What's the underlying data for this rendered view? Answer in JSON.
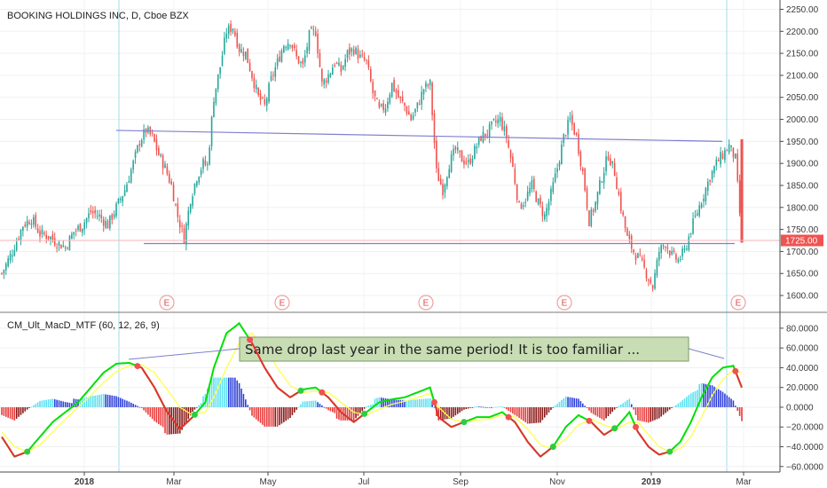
{
  "chart_data": [
    {
      "type": "candlestick",
      "title": "BOOKING HOLDINGS INC, D, Cboe BZX",
      "ylim": [
        1590,
        2255
      ],
      "yticks": [
        "1600.00",
        "1650.00",
        "1700.00",
        "1750.00",
        "1800.00",
        "1850.00",
        "1900.00",
        "1950.00",
        "2000.00",
        "2050.00",
        "2100.00",
        "2150.00",
        "2200.00",
        "2250.00"
      ],
      "xticks": [
        {
          "label": "2018",
          "bold": true
        },
        {
          "label": "Mar",
          "bold": false
        },
        {
          "label": "May",
          "bold": false
        },
        {
          "label": "Jul",
          "bold": false
        },
        {
          "label": "Sep",
          "bold": false
        },
        {
          "label": "Nov",
          "bold": false
        },
        {
          "label": "2019",
          "bold": true
        },
        {
          "label": "Mar",
          "bold": false
        }
      ],
      "last_price": "1725.00",
      "earnings_marker": "E",
      "earnings_count": 5,
      "close_path": [
        [
          0,
          1650
        ],
        [
          5,
          1700
        ],
        [
          10,
          1760
        ],
        [
          14,
          1775
        ],
        [
          18,
          1740
        ],
        [
          22,
          1735
        ],
        [
          26,
          1720
        ],
        [
          30,
          1710
        ],
        [
          34,
          1745
        ],
        [
          38,
          1760
        ],
        [
          42,
          1790
        ],
        [
          46,
          1780
        ],
        [
          50,
          1760
        ],
        [
          54,
          1800
        ],
        [
          58,
          1840
        ],
        [
          62,
          1900
        ],
        [
          65,
          1950
        ],
        [
          68,
          1975
        ],
        [
          71,
          1960
        ],
        [
          74,
          1920
        ],
        [
          77,
          1890
        ],
        [
          80,
          1850
        ],
        [
          83,
          1780
        ],
        [
          86,
          1730
        ],
        [
          89,
          1820
        ],
        [
          92,
          1870
        ],
        [
          95,
          1900
        ],
        [
          97,
          1895
        ],
        [
          100,
          2050
        ],
        [
          103,
          2120
        ],
        [
          106,
          2200
        ],
        [
          109,
          2210
        ],
        [
          112,
          2160
        ],
        [
          115,
          2150
        ],
        [
          118,
          2100
        ],
        [
          121,
          2050
        ],
        [
          124,
          2030
        ],
        [
          127,
          2090
        ],
        [
          130,
          2130
        ],
        [
          133,
          2170
        ],
        [
          136,
          2180
        ],
        [
          139,
          2140
        ],
        [
          142,
          2120
        ],
        [
          145,
          2190
        ],
        [
          148,
          2200
        ],
        [
          151,
          2080
        ],
        [
          154,
          2100
        ],
        [
          157,
          2130
        ],
        [
          160,
          2110
        ],
        [
          163,
          2150
        ],
        [
          166,
          2160
        ],
        [
          169,
          2140
        ],
        [
          172,
          2130
        ],
        [
          175,
          2060
        ],
        [
          178,
          2020
        ],
        [
          181,
          2030
        ],
        [
          184,
          2080
        ],
        [
          187,
          2050
        ],
        [
          190,
          2030
        ],
        [
          193,
          2000
        ],
        [
          196,
          2030
        ],
        [
          199,
          2070
        ],
        [
          202,
          2080
        ],
        [
          205,
          1880
        ],
        [
          208,
          1840
        ],
        [
          211,
          1900
        ],
        [
          214,
          1930
        ],
        [
          217,
          1910
        ],
        [
          220,
          1900
        ],
        [
          223,
          1930
        ],
        [
          226,
          1960
        ],
        [
          229,
          1970
        ],
        [
          232,
          1990
        ],
        [
          235,
          2000
        ],
        [
          238,
          1960
        ],
        [
          241,
          1890
        ],
        [
          244,
          1800
        ],
        [
          247,
          1820
        ],
        [
          250,
          1850
        ],
        [
          253,
          1810
        ],
        [
          256,
          1780
        ],
        [
          259,
          1830
        ],
        [
          262,
          1890
        ],
        [
          265,
          1960
        ],
        [
          268,
          2000
        ],
        [
          271,
          1960
        ],
        [
          274,
          1880
        ],
        [
          277,
          1770
        ],
        [
          280,
          1810
        ],
        [
          283,
          1870
        ],
        [
          286,
          1920
        ],
        [
          289,
          1880
        ],
        [
          292,
          1800
        ],
        [
          295,
          1730
        ],
        [
          298,
          1700
        ],
        [
          301,
          1680
        ],
        [
          304,
          1650
        ],
        [
          307,
          1620
        ],
        [
          310,
          1700
        ],
        [
          313,
          1720
        ],
        [
          316,
          1690
        ],
        [
          319,
          1680
        ],
        [
          322,
          1700
        ],
        [
          325,
          1750
        ],
        [
          328,
          1790
        ],
        [
          331,
          1830
        ],
        [
          334,
          1870
        ],
        [
          337,
          1900
        ],
        [
          340,
          1920
        ],
        [
          343,
          1940
        ],
        [
          346,
          1910
        ],
        [
          349,
          1725
        ]
      ],
      "support_level": 1718,
      "resistance_line": [
        [
          1975,
          "2018-02"
        ],
        [
          1950,
          "2019-02"
        ]
      ]
    },
    {
      "type": "macd",
      "title": "CM_Ult_MacD_MTF (60, 12, 26, 9)",
      "ylim": [
        -62,
        88
      ],
      "yticks": [
        "80.0000",
        "60.0000",
        "40.0000",
        "20.0000",
        "0.0000",
        "−20.0000",
        "−40.0000",
        "−60.0000"
      ],
      "macd_path": [
        [
          0,
          -30
        ],
        [
          6,
          -50
        ],
        [
          12,
          -45
        ],
        [
          18,
          -30
        ],
        [
          24,
          -15
        ],
        [
          30,
          -5
        ],
        [
          36,
          5
        ],
        [
          42,
          20
        ],
        [
          48,
          35
        ],
        [
          54,
          44
        ],
        [
          60,
          45
        ],
        [
          66,
          40
        ],
        [
          72,
          20
        ],
        [
          78,
          -5
        ],
        [
          84,
          -22
        ],
        [
          90,
          -10
        ],
        [
          96,
          5
        ],
        [
          100,
          40
        ],
        [
          106,
          75
        ],
        [
          112,
          85
        ],
        [
          118,
          65
        ],
        [
          124,
          40
        ],
        [
          130,
          20
        ],
        [
          136,
          10
        ],
        [
          142,
          18
        ],
        [
          148,
          20
        ],
        [
          154,
          10
        ],
        [
          160,
          -5
        ],
        [
          166,
          -15
        ],
        [
          172,
          -5
        ],
        [
          178,
          5
        ],
        [
          184,
          8
        ],
        [
          190,
          10
        ],
        [
          196,
          15
        ],
        [
          202,
          20
        ],
        [
          206,
          -10
        ],
        [
          212,
          -20
        ],
        [
          218,
          -15
        ],
        [
          224,
          -10
        ],
        [
          230,
          -10
        ],
        [
          236,
          -5
        ],
        [
          242,
          -15
        ],
        [
          248,
          -35
        ],
        [
          254,
          -50
        ],
        [
          260,
          -40
        ],
        [
          266,
          -20
        ],
        [
          272,
          -8
        ],
        [
          278,
          -15
        ],
        [
          284,
          -28
        ],
        [
          290,
          -20
        ],
        [
          296,
          -5
        ],
        [
          300,
          -25
        ],
        [
          305,
          -40
        ],
        [
          310,
          -48
        ],
        [
          315,
          -45
        ],
        [
          320,
          -35
        ],
        [
          325,
          -15
        ],
        [
          330,
          10
        ],
        [
          335,
          30
        ],
        [
          340,
          40
        ],
        [
          345,
          42
        ],
        [
          349,
          20
        ]
      ],
      "signal_path": [
        [
          0,
          -25
        ],
        [
          6,
          -40
        ],
        [
          12,
          -45
        ],
        [
          18,
          -38
        ],
        [
          24,
          -25
        ],
        [
          30,
          -12
        ],
        [
          36,
          0
        ],
        [
          42,
          12
        ],
        [
          48,
          25
        ],
        [
          54,
          36
        ],
        [
          60,
          42
        ],
        [
          66,
          43
        ],
        [
          72,
          35
        ],
        [
          78,
          18
        ],
        [
          84,
          0
        ],
        [
          90,
          -8
        ],
        [
          96,
          -5
        ],
        [
          100,
          10
        ],
        [
          106,
          40
        ],
        [
          112,
          65
        ],
        [
          118,
          75
        ],
        [
          124,
          60
        ],
        [
          130,
          40
        ],
        [
          136,
          22
        ],
        [
          142,
          15
        ],
        [
          148,
          16
        ],
        [
          154,
          15
        ],
        [
          160,
          5
        ],
        [
          166,
          -5
        ],
        [
          172,
          -8
        ],
        [
          178,
          -2
        ],
        [
          184,
          3
        ],
        [
          190,
          6
        ],
        [
          196,
          10
        ],
        [
          202,
          14
        ],
        [
          206,
          0
        ],
        [
          212,
          -12
        ],
        [
          218,
          -15
        ],
        [
          224,
          -13
        ],
        [
          230,
          -12
        ],
        [
          236,
          -8
        ],
        [
          242,
          -10
        ],
        [
          248,
          -22
        ],
        [
          254,
          -38
        ],
        [
          260,
          -42
        ],
        [
          266,
          -32
        ],
        [
          272,
          -18
        ],
        [
          278,
          -12
        ],
        [
          284,
          -18
        ],
        [
          290,
          -22
        ],
        [
          296,
          -15
        ],
        [
          300,
          -15
        ],
        [
          305,
          -28
        ],
        [
          310,
          -40
        ],
        [
          315,
          -45
        ],
        [
          320,
          -42
        ],
        [
          325,
          -30
        ],
        [
          330,
          -10
        ],
        [
          335,
          12
        ],
        [
          340,
          28
        ],
        [
          345,
          38
        ],
        [
          349,
          35
        ]
      ],
      "annotation": "Same drop last year in the same period! It is too familiar ..."
    }
  ]
}
